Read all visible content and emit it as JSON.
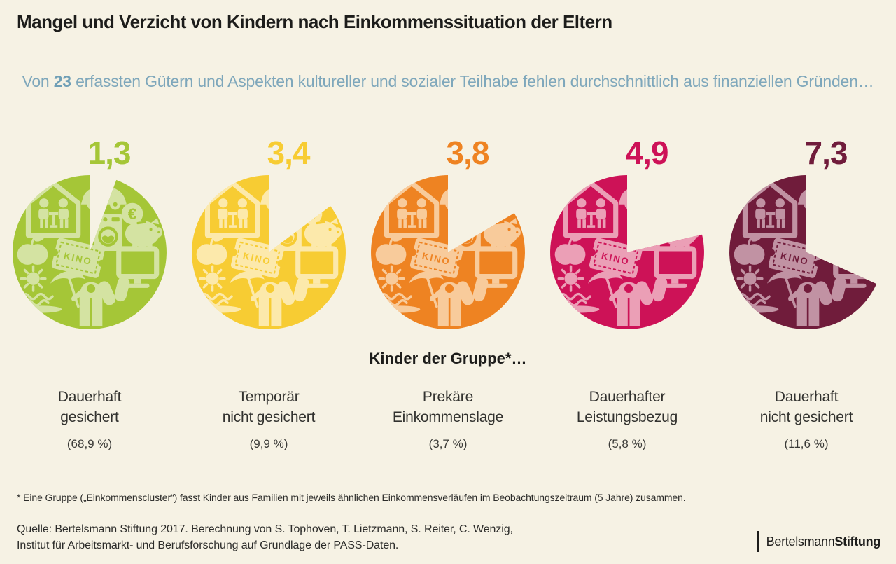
{
  "header": {
    "title": "Mangel und Verzicht von Kindern nach Einkommenssituation der Eltern",
    "subtitle_prefix": "Von ",
    "subtitle_number": "23",
    "subtitle_rest": " erfassten Gütern und Aspekten kultureller und sozialer Teilhabe fehlen durchschnittlich aus finanziellen Gründen…"
  },
  "chart_data": {
    "type": "pie",
    "title": "Mangel und Verzicht von Kindern nach Einkommenssituation der Eltern",
    "subtitle": "Von 23 erfassten Gütern und Aspekten kultureller und sozialer Teilhabe fehlen durchschnittlich aus finanziellen Gründen…",
    "total_goods": 23,
    "center_caption": "Kinder der Gruppe*…",
    "ticket_label": "KINO",
    "icons": [
      "family-at-home",
      "car",
      "washing-machine",
      "euro-coin",
      "piggy-bank",
      "apple",
      "cinema-ticket",
      "tv-monitor",
      "sun",
      "waves-beach",
      "beach-umbrella",
      "jacket",
      "mittens"
    ],
    "groups": [
      {
        "value": 1.3,
        "value_label": "1,3",
        "name_lines": [
          "Dauerhaft",
          "gesichert"
        ],
        "share_pct": 68.9,
        "share_label": "(68,9 %)",
        "color": "#a5c637",
        "icon_tint": "#d4e3a2"
      },
      {
        "value": 3.4,
        "value_label": "3,4",
        "name_lines": [
          "Temporär",
          "nicht gesichert"
        ],
        "share_pct": 9.9,
        "share_label": "(9,9 %)",
        "color": "#f7cc33",
        "icon_tint": "#fce9ab"
      },
      {
        "value": 3.8,
        "value_label": "3,8",
        "name_lines": [
          "Prekäre",
          "Einkommenslage"
        ],
        "share_pct": 3.7,
        "share_label": "(3,7 %)",
        "color": "#ee8322",
        "icon_tint": "#f8cb9b"
      },
      {
        "value": 4.9,
        "value_label": "4,9",
        "name_lines": [
          "Dauerhafter",
          "Leistungsbezug"
        ],
        "share_pct": 5.8,
        "share_label": "(5,8 %)",
        "color": "#cd1257",
        "icon_tint": "#eb9fb6"
      },
      {
        "value": 7.3,
        "value_label": "7,3",
        "name_lines": [
          "Dauerhaft",
          "nicht gesichert"
        ],
        "share_pct": 11.6,
        "share_label": "(11,6 %)",
        "color": "#701c3b",
        "icon_tint": "#c192a3"
      }
    ]
  },
  "footer": {
    "footnote": "* Eine Gruppe („Einkommenscluster“) fasst Kinder aus Familien mit jeweils ähnlichen Einkommensverläufen im Beobachtungszeitraum (5 Jahre) zusammen.",
    "source_line1": "Quelle: Bertelsmann Stiftung 2017. Berechnung von S. Tophoven, T. Lietzmann, S. Reiter, C. Wenzig,",
    "source_line2": "Institut für Arbeitsmarkt- und Berufsforschung auf Grundlage der PASS-Daten.",
    "logo_regular": "Bertelsmann",
    "logo_bold": "Stiftung"
  },
  "colors": {
    "background": "#f6f2e4",
    "text": "#1d1d1b",
    "subtitle_blue": "#7ea7bb"
  }
}
